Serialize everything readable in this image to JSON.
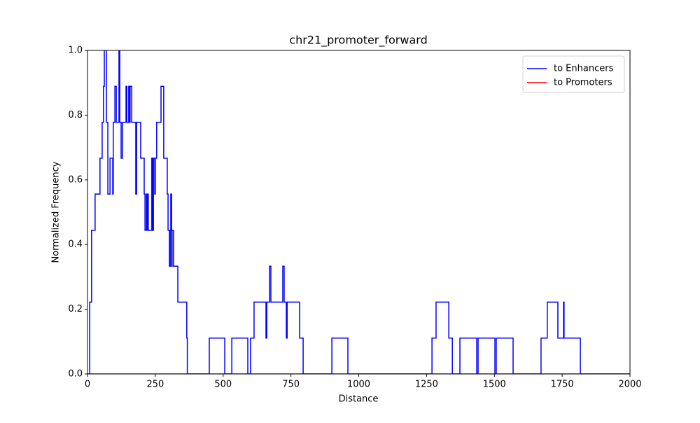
{
  "chart_data": {
    "type": "line",
    "title": "chr21_promoter_forward",
    "xlabel": "Distance",
    "ylabel": "Normalized Frequency",
    "xlim": [
      0,
      2000
    ],
    "ylim": [
      0,
      1
    ],
    "xticks": [
      0,
      250,
      500,
      750,
      1000,
      1250,
      1500,
      1750,
      2000
    ],
    "yticks": [
      {
        "value": 0,
        "label": "0.0"
      },
      0.2,
      0.4,
      0.6,
      0.8,
      {
        "value": 1,
        "label": "1.0"
      }
    ],
    "drawstyle": "steps-post",
    "legend": "upper right",
    "series": [
      {
        "name": "to Enhancers",
        "color": "#0000ff",
        "x": [
          0,
          8,
          15,
          28,
          46,
          54,
          59,
          62,
          70,
          75,
          83,
          93,
          95,
          101,
          106,
          116,
          119,
          124,
          129,
          142,
          145,
          152,
          155,
          157,
          163,
          178,
          181,
          196,
          209,
          212,
          217,
          219,
          222,
          224,
          237,
          240,
          243,
          248,
          250,
          255,
          271,
          281,
          294,
          297,
          302,
          305,
          307,
          310,
          312,
          317,
          333,
          366,
          368,
          449,
          506,
          532,
          591,
          601,
          614,
          658,
          661,
          671,
          676,
          720,
          725,
          733,
          736,
          782,
          795,
          901,
          960,
          1270,
          1285,
          1332,
          1345,
          1373,
          1435,
          1440,
          1502,
          1507,
          1569,
          1672,
          1695,
          1734,
          1755,
          1757,
          1817,
          2000
        ],
        "values": [
          0,
          0.222,
          0.444,
          0.556,
          0.667,
          0.778,
          0.889,
          1,
          0.778,
          0.556,
          0.667,
          0.556,
          0.778,
          0.889,
          0.778,
          1,
          0.778,
          0.667,
          0.778,
          0.889,
          0.778,
          0.889,
          0.778,
          0.889,
          0.778,
          0.556,
          0.778,
          0.667,
          0.556,
          0.444,
          0.556,
          0.444,
          0.556,
          0.444,
          0.667,
          0.444,
          0.667,
          0.556,
          0.667,
          0.778,
          0.889,
          0.667,
          0.556,
          0.444,
          0.333,
          0.444,
          0.556,
          0.333,
          0.444,
          0.333,
          0.222,
          0.111,
          0,
          0.111,
          0,
          0.111,
          0,
          0.111,
          0.222,
          0.111,
          0.222,
          0.333,
          0.222,
          0.333,
          0.222,
          0.111,
          0.222,
          0.111,
          0,
          0.111,
          0,
          0.111,
          0.222,
          0.111,
          0,
          0.111,
          0,
          0.111,
          0,
          0.111,
          0,
          0.111,
          0.222,
          0.111,
          0.222,
          0.111,
          0,
          0
        ]
      },
      {
        "name": "to Promoters",
        "color": "#ff0000",
        "x": [
          0,
          2000
        ],
        "values": [
          0,
          0
        ]
      }
    ]
  }
}
